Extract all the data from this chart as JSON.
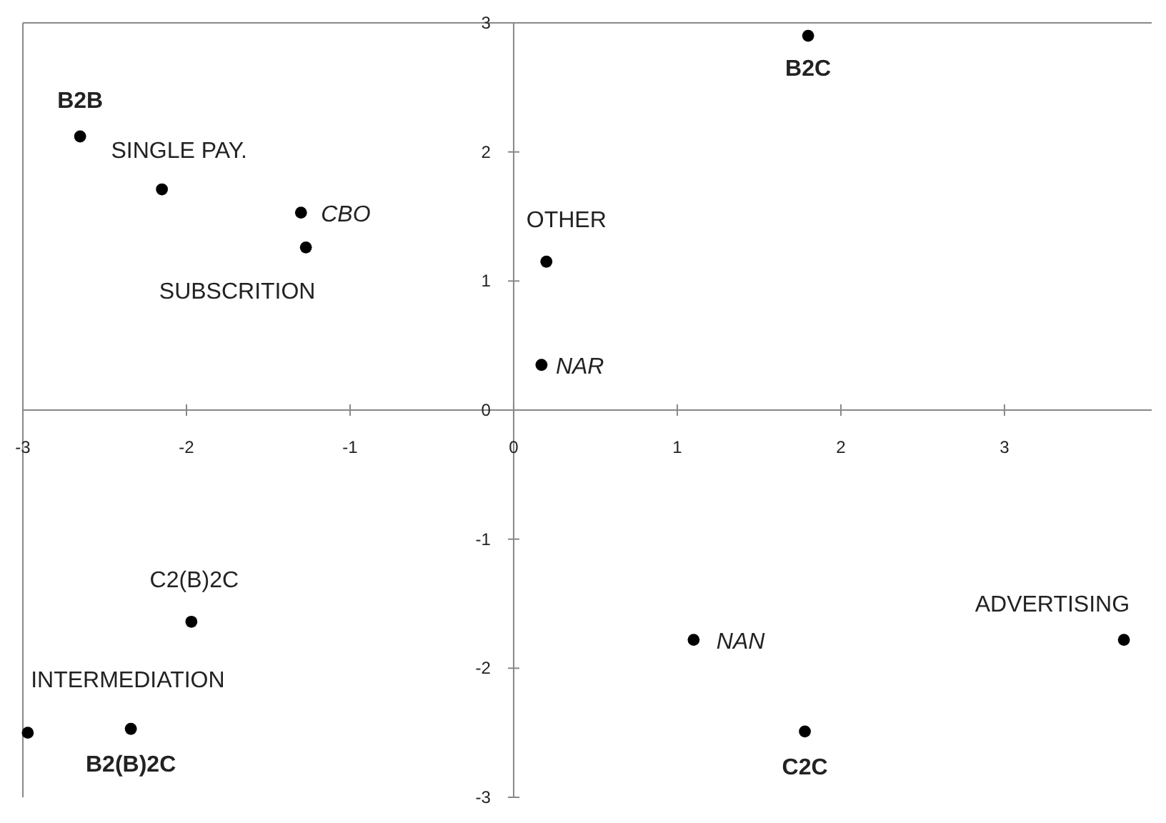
{
  "chart_data": {
    "type": "scatter",
    "x": [
      -2.65,
      -2.15,
      -1.3,
      -1.27,
      1.8,
      0.2,
      0.17,
      -1.97,
      -2.97,
      -2.34,
      1.1,
      1.78,
      3.73
    ],
    "series": [
      {
        "color": "#000000",
        "values": [
          2.12,
          1.71,
          1.53,
          1.26,
          2.9,
          1.15,
          0.35,
          -1.64,
          -2.5,
          -2.47,
          -1.78,
          -2.49,
          -1.78
        ]
      }
    ],
    "annotations": [
      {
        "text": "B2B",
        "x": -2.65,
        "y": 2.12
      },
      {
        "text": "SINGLE PAY.",
        "x": -2.15,
        "y": 1.71
      },
      {
        "text": "CBO",
        "x": -1.3,
        "y": 1.53
      },
      {
        "text": "SUBSCRITION",
        "x": -1.27,
        "y": 1.26
      },
      {
        "text": "B2C",
        "x": 1.8,
        "y": 2.9
      },
      {
        "text": "OTHER",
        "x": 0.2,
        "y": 1.15
      },
      {
        "text": "NAR",
        "x": 0.17,
        "y": 0.35
      },
      {
        "text": "C2(B)2C",
        "x": -1.97,
        "y": -1.64
      },
      {
        "text": "INTERMEDIATION",
        "x": -2.97,
        "y": -2.5
      },
      {
        "text": "B2(B)2C",
        "x": -2.34,
        "y": -2.47
      },
      {
        "text": "NAN",
        "x": 1.1,
        "y": -1.78
      },
      {
        "text": "C2C",
        "x": 1.78,
        "y": -2.49
      },
      {
        "text": "ADVERTISING",
        "x": 3.73,
        "y": -1.78
      }
    ],
    "xlim": [
      -3,
      3.9
    ],
    "ylim": [
      -3,
      3
    ],
    "xticks": [
      -3,
      -2,
      -1,
      0,
      1,
      2,
      3
    ],
    "yticks": [
      -3,
      -2,
      -1,
      0,
      1,
      2,
      3
    ],
    "marker": "circle",
    "grid": false
  }
}
